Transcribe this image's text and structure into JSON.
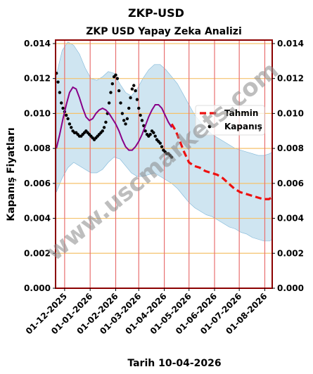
{
  "page_title": "ZKP-USD",
  "chart_data": {
    "type": "line",
    "title": "ZKP USD Yapay Zeka Analizi",
    "xlabel": "Tarih 10-04-2026",
    "ylabel": "Kapanış Fiyatları",
    "ylim": [
      0,
      0.0142
    ],
    "yticks": [
      "0.000",
      "0.002",
      "0.004",
      "0.006",
      "0.008",
      "0.010",
      "0.012",
      "0.014"
    ],
    "ytick_values": [
      0,
      0.002,
      0.004,
      0.006,
      0.008,
      0.01,
      0.012,
      0.014
    ],
    "xlim": [
      "2025-11-20",
      "2026-08-10"
    ],
    "xticks": [
      "01-12-2025",
      "01-01-2026",
      "01-02-2026",
      "01-03-2026",
      "01-04-2026",
      "01-05-2026",
      "01-06-2026",
      "01-07-2026",
      "01-08-2026"
    ],
    "xtick_dates": [
      "2025-12-01",
      "2026-01-01",
      "2026-02-01",
      "2026-03-01",
      "2026-04-01",
      "2026-05-01",
      "2026-06-01",
      "2026-07-01",
      "2026-08-01"
    ],
    "grid": true,
    "legend_position": "right",
    "colors": {
      "kapanis": "#000000",
      "tahmin": "#ee1111",
      "trend": "#880088",
      "band": "#a8cfe6",
      "hgrid": "#f5c26b",
      "vgrid": "#e87070",
      "frame": "#8b0000"
    },
    "series": [
      {
        "name": "Kapanış",
        "style": "dots",
        "x": [
          "2025-11-21",
          "2025-11-23",
          "2025-11-25",
          "2025-11-27",
          "2025-11-29",
          "2025-12-01",
          "2025-12-03",
          "2025-12-05",
          "2025-12-07",
          "2025-12-09",
          "2025-12-11",
          "2025-12-13",
          "2025-12-15",
          "2025-12-17",
          "2025-12-19",
          "2025-12-21",
          "2025-12-23",
          "2025-12-25",
          "2025-12-27",
          "2025-12-29",
          "2025-12-31",
          "2026-01-02",
          "2026-01-04",
          "2026-01-06",
          "2026-01-08",
          "2026-01-10",
          "2026-01-12",
          "2026-01-14",
          "2026-01-16",
          "2026-01-18",
          "2026-01-20",
          "2026-01-22",
          "2026-01-24",
          "2026-01-26",
          "2026-01-28",
          "2026-01-30",
          "2026-02-01",
          "2026-02-03",
          "2026-02-05",
          "2026-02-07",
          "2026-02-09",
          "2026-02-11",
          "2026-02-13",
          "2026-02-15",
          "2026-02-17",
          "2026-02-19",
          "2026-02-21",
          "2026-02-23",
          "2026-02-25",
          "2026-02-27",
          "2026-03-01",
          "2026-03-03",
          "2026-03-05",
          "2026-03-07",
          "2026-03-09",
          "2026-03-11",
          "2026-03-13",
          "2026-03-15",
          "2026-03-17",
          "2026-03-19",
          "2026-03-21",
          "2026-03-23",
          "2026-03-25",
          "2026-03-27",
          "2026-03-29",
          "2026-03-31",
          "2026-04-02",
          "2026-04-04",
          "2026-04-06",
          "2026-04-08",
          "2026-04-10"
        ],
        "y": [
          0.0123,
          0.0118,
          0.0112,
          0.0106,
          0.0103,
          0.0101,
          0.0099,
          0.0097,
          0.0094,
          0.0092,
          0.009,
          0.0089,
          0.0089,
          0.0088,
          0.0087,
          0.0087,
          0.0088,
          0.0089,
          0.009,
          0.0089,
          0.0088,
          0.0087,
          0.0086,
          0.0085,
          0.0086,
          0.0087,
          0.0088,
          0.0089,
          0.009,
          0.0092,
          0.0095,
          0.01,
          0.0106,
          0.0112,
          0.0117,
          0.0121,
          0.0122,
          0.012,
          0.0113,
          0.0106,
          0.01,
          0.0096,
          0.0094,
          0.0097,
          0.0103,
          0.0109,
          0.0114,
          0.0116,
          0.0113,
          0.0108,
          0.0103,
          0.0099,
          0.0096,
          0.0093,
          0.009,
          0.0088,
          0.0087,
          0.0088,
          0.009,
          0.0089,
          0.0087,
          0.0085,
          0.0084,
          0.0083,
          0.0081,
          0.0079,
          0.0078,
          0.0077,
          0.0077,
          0.0076,
          0.0075
        ]
      },
      {
        "name": "",
        "style": "trend",
        "x": [
          "2025-11-21",
          "2025-11-25",
          "2025-11-29",
          "2025-12-03",
          "2025-12-07",
          "2025-12-11",
          "2025-12-15",
          "2025-12-19",
          "2025-12-23",
          "2025-12-27",
          "2025-12-31",
          "2026-01-04",
          "2026-01-08",
          "2026-01-12",
          "2026-01-16",
          "2026-01-20",
          "2026-01-24",
          "2026-01-28",
          "2026-02-01",
          "2026-02-05",
          "2026-02-09",
          "2026-02-13",
          "2026-02-17",
          "2026-02-21",
          "2026-02-25",
          "2026-03-01",
          "2026-03-05",
          "2026-03-09",
          "2026-03-13",
          "2026-03-17",
          "2026-03-21",
          "2026-03-25",
          "2026-03-29",
          "2026-04-02",
          "2026-04-06",
          "2026-04-10"
        ],
        "y": [
          0.008,
          0.0088,
          0.0097,
          0.0105,
          0.0112,
          0.0115,
          0.0114,
          0.0109,
          0.0103,
          0.0098,
          0.0096,
          0.0097,
          0.01,
          0.0102,
          0.0103,
          0.0102,
          0.01,
          0.0097,
          0.0094,
          0.009,
          0.0085,
          0.0081,
          0.0079,
          0.0079,
          0.0081,
          0.0084,
          0.0088,
          0.0093,
          0.0098,
          0.0102,
          0.0105,
          0.0105,
          0.0103,
          0.0099,
          0.0095,
          0.0092
        ]
      },
      {
        "name": "Tahmin",
        "style": "dashed",
        "x": [
          "2026-04-10",
          "2026-04-15",
          "2026-04-20",
          "2026-04-25",
          "2026-05-01",
          "2026-05-07",
          "2026-05-14",
          "2026-05-21",
          "2026-05-28",
          "2026-06-04",
          "2026-06-11",
          "2026-06-18",
          "2026-06-25",
          "2026-07-02",
          "2026-07-09",
          "2026-07-16",
          "2026-07-23",
          "2026-07-30",
          "2026-08-06",
          "2026-08-10"
        ],
        "y": [
          0.0094,
          0.009,
          0.0084,
          0.0078,
          0.0072,
          0.007,
          0.0069,
          0.0067,
          0.0066,
          0.0065,
          0.0063,
          0.006,
          0.0057,
          0.0055,
          0.0054,
          0.0053,
          0.0052,
          0.0051,
          0.0051,
          0.0052
        ]
      }
    ],
    "band": {
      "x": [
        "2025-11-21",
        "2025-11-28",
        "2025-12-05",
        "2025-12-12",
        "2025-12-19",
        "2025-12-26",
        "2026-01-02",
        "2026-01-09",
        "2026-01-16",
        "2026-01-23",
        "2026-01-30",
        "2026-02-06",
        "2026-02-13",
        "2026-02-20",
        "2026-02-27",
        "2026-03-06",
        "2026-03-13",
        "2026-03-20",
        "2026-03-27",
        "2026-04-03",
        "2026-04-10",
        "2026-04-17",
        "2026-04-24",
        "2026-05-01",
        "2026-05-08",
        "2026-05-15",
        "2026-05-22",
        "2026-05-29",
        "2026-06-05",
        "2026-06-12",
        "2026-06-19",
        "2026-06-26",
        "2026-07-03",
        "2026-07-10",
        "2026-07-17",
        "2026-07-24",
        "2026-07-31",
        "2026-08-07",
        "2026-08-10"
      ],
      "upper": [
        0.0122,
        0.0136,
        0.0141,
        0.0139,
        0.0134,
        0.0126,
        0.012,
        0.0119,
        0.0121,
        0.0124,
        0.0123,
        0.0117,
        0.0112,
        0.011,
        0.0114,
        0.012,
        0.0125,
        0.0128,
        0.0128,
        0.0125,
        0.0121,
        0.0117,
        0.0111,
        0.0105,
        0.0099,
        0.0095,
        0.0091,
        0.0088,
        0.0086,
        0.0084,
        0.0082,
        0.008,
        0.0079,
        0.0078,
        0.0077,
        0.0076,
        0.0076,
        0.0077,
        0.0078
      ],
      "lower": [
        0.0055,
        0.0063,
        0.0069,
        0.0072,
        0.007,
        0.0068,
        0.0066,
        0.0066,
        0.0068,
        0.0072,
        0.0075,
        0.0074,
        0.007,
        0.0066,
        0.0064,
        0.0064,
        0.0065,
        0.0066,
        0.0064,
        0.0062,
        0.006,
        0.0057,
        0.0053,
        0.0049,
        0.0046,
        0.0044,
        0.0042,
        0.0041,
        0.0039,
        0.0037,
        0.0035,
        0.0034,
        0.0032,
        0.0031,
        0.0029,
        0.0028,
        0.0027,
        0.0027,
        0.0028
      ]
    },
    "watermark": "www.uscmarkets.com"
  }
}
